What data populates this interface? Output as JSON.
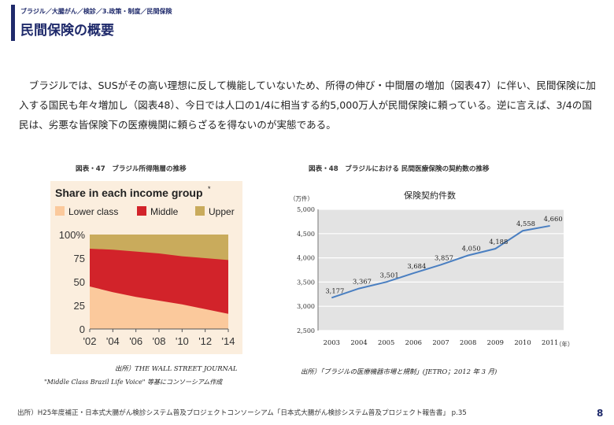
{
  "header": {
    "breadcrumb": "ブラジル／大腸がん／検診／3.政策・制度／民間保険",
    "title": "民間保険の概要"
  },
  "body": {
    "paragraph": "ブラジルでは、SUSがその高い理想に反して機能していないため、所得の伸び・中間層の増加（図表47）に伴い、民間保険に加入する国民も年々増加し（図表48）、今日では人口の1/4に相当する約5,000万人が民間保険に頼っている。逆に言えば、3/4の国民は、劣悪な皆保険下の医療機関に頼らざるを得ないのが実態である。"
  },
  "figures": {
    "left": {
      "caption": "図表・47　ブラジル所得階層の推移",
      "source_line1": "出所）THE WALL STREET JOURNAL",
      "source_line2": "\"Middle Class Brazil Life Voice\" 等基にコンソーシアム作成"
    },
    "right": {
      "caption": "図表・48　ブラジルにおける 民間医療保険の契約数の推移",
      "source": "出所）「ブラジルの医療機器市場と規制」(JETRO；2012 年 3 月)"
    }
  },
  "chart_data": [
    {
      "type": "area",
      "title": "Share in each income group",
      "title_mark": "*",
      "legend": [
        "Lower class",
        "Middle",
        "Upper"
      ],
      "legend_placement": "top",
      "x": [
        "'02",
        "'04",
        "'06",
        "'08",
        "'10",
        "'12",
        "'14"
      ],
      "y_ticks": [
        "100%",
        "75",
        "50",
        "25",
        "0"
      ],
      "ylim": [
        0,
        100
      ],
      "grid": false,
      "series": [
        {
          "name": "Lower class",
          "values": [
            45,
            39,
            34,
            30,
            26,
            21,
            16
          ]
        },
        {
          "name": "Middle",
          "values": [
            40,
            45,
            48,
            50,
            51,
            54,
            57
          ]
        },
        {
          "name": "Upper",
          "values": [
            15,
            16,
            18,
            20,
            23,
            25,
            27
          ]
        }
      ],
      "colors": {
        "lower": "#fbc99c",
        "middle": "#d2232a",
        "upper": "#c9ab5c"
      }
    },
    {
      "type": "line",
      "title": "保険契約件数",
      "ylabel": "（万件）",
      "xlabel": "（年）",
      "ylim": [
        2500,
        5000
      ],
      "y_ticks": [
        "2,500",
        "3,000",
        "3,500",
        "4,000",
        "4,500",
        "5,000"
      ],
      "x": [
        "2003",
        "2004",
        "2005",
        "2006",
        "2007",
        "2008",
        "2009",
        "2010",
        "2011"
      ],
      "values": [
        3177,
        3367,
        3501,
        3684,
        3857,
        4050,
        4188,
        4558,
        4660
      ],
      "data_labels": [
        "3,177",
        "3,367",
        "3,501",
        "3,684",
        "3,857",
        "4,050",
        "4,188",
        "4,558",
        "4,660"
      ],
      "grid": true,
      "colors": {
        "line": "#4a7fc1",
        "plot_bg": "#e3e3e3",
        "grid": "#ffffff"
      }
    }
  ],
  "footer": {
    "source": "出所）H25年度補正・日本式大腸がん検診システム普及プロジェクトコンソーシアム「日本式大腸がん検診システム普及プロジェクト報告書」 p.35",
    "page_number": "8"
  }
}
